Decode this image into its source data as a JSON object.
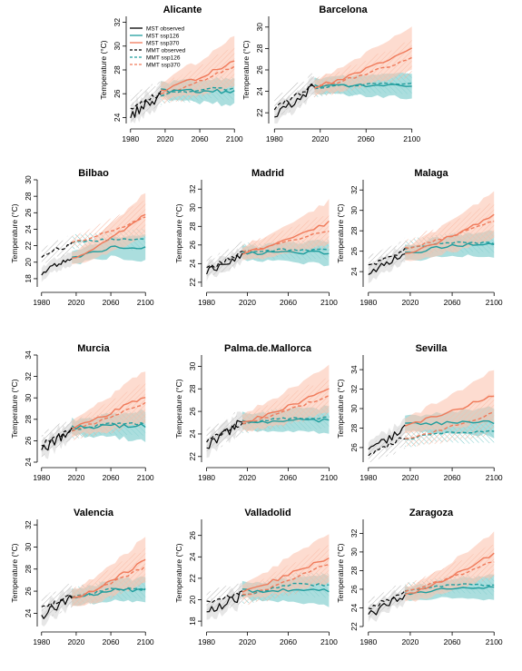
{
  "colors": {
    "observed": "#000000",
    "ssp126": "#1f9d9d",
    "ssp370": "#f07a5a",
    "band_ssp126": "#8fd3d3",
    "band_ssp370": "#fbc4b0",
    "band_observed": "#c8c8c8"
  },
  "legend": [
    {
      "label": "MST observed",
      "series": "observed",
      "style": "solid"
    },
    {
      "label": "MST ssp126",
      "series": "ssp126",
      "style": "solid"
    },
    {
      "label": "MST ssp370",
      "series": "ssp370",
      "style": "solid"
    },
    {
      "label": "MMT observed",
      "series": "observed",
      "style": "dashed"
    },
    {
      "label": "MMT ssp126",
      "series": "ssp126",
      "style": "dashed"
    },
    {
      "label": "MMT ssp370",
      "series": "ssp370",
      "style": "dashed"
    }
  ],
  "chart_data": [
    {
      "type": "line",
      "title": "Alicante",
      "ylabel": "Temperature (°C)",
      "xlim": [
        1975,
        2105
      ],
      "ylim": [
        23.5,
        32.5
      ],
      "xticks": [
        1980,
        2020,
        2060,
        2100
      ],
      "yticks": [
        24,
        26,
        28,
        30,
        32
      ],
      "obs": {
        "start": 24.2,
        "end": 25.8,
        "mmt_start": 24.8,
        "mmt_end": 26.1
      },
      "ssp126": {
        "mst_end": 26.2,
        "mmt_end": 26.4,
        "band": 1.0
      },
      "ssp370": {
        "mst_end": 28.8,
        "mmt_end": 28.3,
        "band": 2.0
      }
    },
    {
      "type": "line",
      "title": "Barcelona",
      "ylabel": "Temperature (°C)",
      "xlim": [
        1975,
        2105
      ],
      "ylim": [
        21.0,
        31.0
      ],
      "xticks": [
        1980,
        2020,
        2060,
        2100
      ],
      "yticks": [
        22,
        24,
        26,
        28,
        30
      ],
      "obs": {
        "start": 21.8,
        "end": 24.4,
        "mmt_start": 22.4,
        "mmt_end": 24.6
      },
      "ssp126": {
        "mst_end": 24.6,
        "mmt_end": 24.7,
        "band": 1.1
      },
      "ssp370": {
        "mst_end": 27.9,
        "mmt_end": 27.1,
        "band": 2.0
      }
    },
    {
      "type": "line",
      "title": "Bilbao",
      "ylabel": "Temperature (°C)",
      "xlim": [
        1975,
        2105
      ],
      "ylim": [
        17.0,
        30.0
      ],
      "xticks": [
        1980,
        2020,
        2060,
        2100
      ],
      "yticks": [
        18,
        20,
        22,
        24,
        26,
        28,
        30
      ],
      "obs": {
        "start": 18.6,
        "end": 20.8,
        "mmt_start": 20.8,
        "mmt_end": 22.2
      },
      "ssp126": {
        "mst_end": 21.8,
        "mmt_end": 22.8,
        "band": 1.5
      },
      "ssp370": {
        "mst_end": 25.8,
        "mmt_end": 25.4,
        "band": 2.5
      }
    },
    {
      "type": "line",
      "title": "Madrid",
      "ylabel": "Temperature (°C)",
      "xlim": [
        1975,
        2105
      ],
      "ylim": [
        21.5,
        33.0
      ],
      "xticks": [
        1980,
        2020,
        2060,
        2100
      ],
      "yticks": [
        22,
        24,
        26,
        28,
        30,
        32
      ],
      "obs": {
        "start": 23.0,
        "end": 25.0,
        "mmt_start": 23.4,
        "mmt_end": 25.2
      },
      "ssp126": {
        "mst_end": 25.2,
        "mmt_end": 25.5,
        "band": 1.2
      },
      "ssp370": {
        "mst_end": 28.4,
        "mmt_end": 27.6,
        "band": 2.2
      }
    },
    {
      "type": "line",
      "title": "Malaga",
      "ylabel": "Temperature (°C)",
      "xlim": [
        1975,
        2105
      ],
      "ylim": [
        22.5,
        33.0
      ],
      "xticks": [
        1980,
        2020,
        2060,
        2100
      ],
      "yticks": [
        24,
        26,
        28,
        30,
        32
      ],
      "obs": {
        "start": 23.8,
        "end": 26.0,
        "mmt_start": 24.6,
        "mmt_end": 26.2
      },
      "ssp126": {
        "mst_end": 26.6,
        "mmt_end": 26.8,
        "band": 1.2
      },
      "ssp370": {
        "mst_end": 29.6,
        "mmt_end": 29.0,
        "band": 2.2
      }
    },
    {
      "type": "line",
      "title": "Murcia",
      "ylabel": "Temperature (°C)",
      "xlim": [
        1975,
        2105
      ],
      "ylim": [
        24.0,
        34.0
      ],
      "xticks": [
        1980,
        2020,
        2060,
        2100
      ],
      "yticks": [
        24,
        26,
        28,
        30,
        32,
        34
      ],
      "obs": {
        "start": 25.2,
        "end": 27.0,
        "mmt_start": 25.6,
        "mmt_end": 27.0
      },
      "ssp126": {
        "mst_end": 27.4,
        "mmt_end": 27.6,
        "band": 1.3
      },
      "ssp370": {
        "mst_end": 30.2,
        "mmt_end": 29.6,
        "band": 2.4
      }
    },
    {
      "type": "line",
      "title": "Palma.de.Mallorca",
      "ylabel": "Temperature (°C)",
      "xlim": [
        1975,
        2105
      ],
      "ylim": [
        21.5,
        31.0
      ],
      "xticks": [
        1980,
        2020,
        2060,
        2100
      ],
      "yticks": [
        22,
        24,
        26,
        28,
        30
      ],
      "obs": {
        "start": 22.8,
        "end": 25.2,
        "mmt_start": 23.4,
        "mmt_end": 25.0
      },
      "ssp126": {
        "mst_end": 25.2,
        "mmt_end": 25.4,
        "band": 1.1
      },
      "ssp370": {
        "mst_end": 28.0,
        "mmt_end": 27.4,
        "band": 2.0
      }
    },
    {
      "type": "line",
      "title": "Sevilla",
      "ylabel": "Temperature (°C)",
      "xlim": [
        1975,
        2105
      ],
      "ylim": [
        24.5,
        35.5
      ],
      "xticks": [
        1980,
        2020,
        2060,
        2100
      ],
      "yticks": [
        26,
        28,
        30,
        32,
        34
      ],
      "obs": {
        "start": 25.8,
        "end": 28.0,
        "mmt_start": 25.4,
        "mmt_end": 27.0
      },
      "ssp126": {
        "mst_end": 28.6,
        "mmt_end": 27.6,
        "band": 1.4
      },
      "ssp370": {
        "mst_end": 31.4,
        "mmt_end": 29.6,
        "band": 2.5
      }
    },
    {
      "type": "line",
      "title": "Valencia",
      "ylabel": "Temperature (°C)",
      "xlim": [
        1975,
        2105
      ],
      "ylim": [
        22.8,
        32.5
      ],
      "xticks": [
        1980,
        2020,
        2060,
        2100
      ],
      "yticks": [
        24,
        26,
        28,
        30,
        32
      ],
      "obs": {
        "start": 23.8,
        "end": 25.4,
        "mmt_start": 24.4,
        "mmt_end": 25.6
      },
      "ssp126": {
        "mst_end": 26.1,
        "mmt_end": 26.2,
        "band": 1.0
      },
      "ssp370": {
        "mst_end": 28.8,
        "mmt_end": 28.2,
        "band": 2.0
      }
    },
    {
      "type": "line",
      "title": "Valladolid",
      "ylabel": "Temperature (°C)",
      "xlim": [
        1975,
        2105
      ],
      "ylim": [
        17.5,
        27.5
      ],
      "xticks": [
        1980,
        2020,
        2060,
        2100
      ],
      "yticks": [
        18,
        20,
        22,
        24,
        26
      ],
      "obs": {
        "start": 18.8,
        "end": 20.4,
        "mmt_start": 19.8,
        "mmt_end": 20.6
      },
      "ssp126": {
        "mst_end": 20.9,
        "mmt_end": 21.4,
        "band": 1.3
      },
      "ssp370": {
        "mst_end": 24.0,
        "mmt_end": 23.4,
        "band": 2.2
      }
    },
    {
      "type": "line",
      "title": "Zaragoza",
      "ylabel": "Temperature (°C)",
      "xlim": [
        1975,
        2105
      ],
      "ylim": [
        22.0,
        33.5
      ],
      "xticks": [
        1980,
        2020,
        2060,
        2100
      ],
      "yticks": [
        22,
        24,
        26,
        28,
        30,
        32
      ],
      "obs": {
        "start": 23.2,
        "end": 25.4,
        "mmt_start": 24.0,
        "mmt_end": 25.6
      },
      "ssp126": {
        "mst_end": 26.2,
        "mmt_end": 26.5,
        "band": 1.2
      },
      "ssp370": {
        "mst_end": 29.8,
        "mmt_end": 29.0,
        "band": 2.2
      }
    }
  ]
}
